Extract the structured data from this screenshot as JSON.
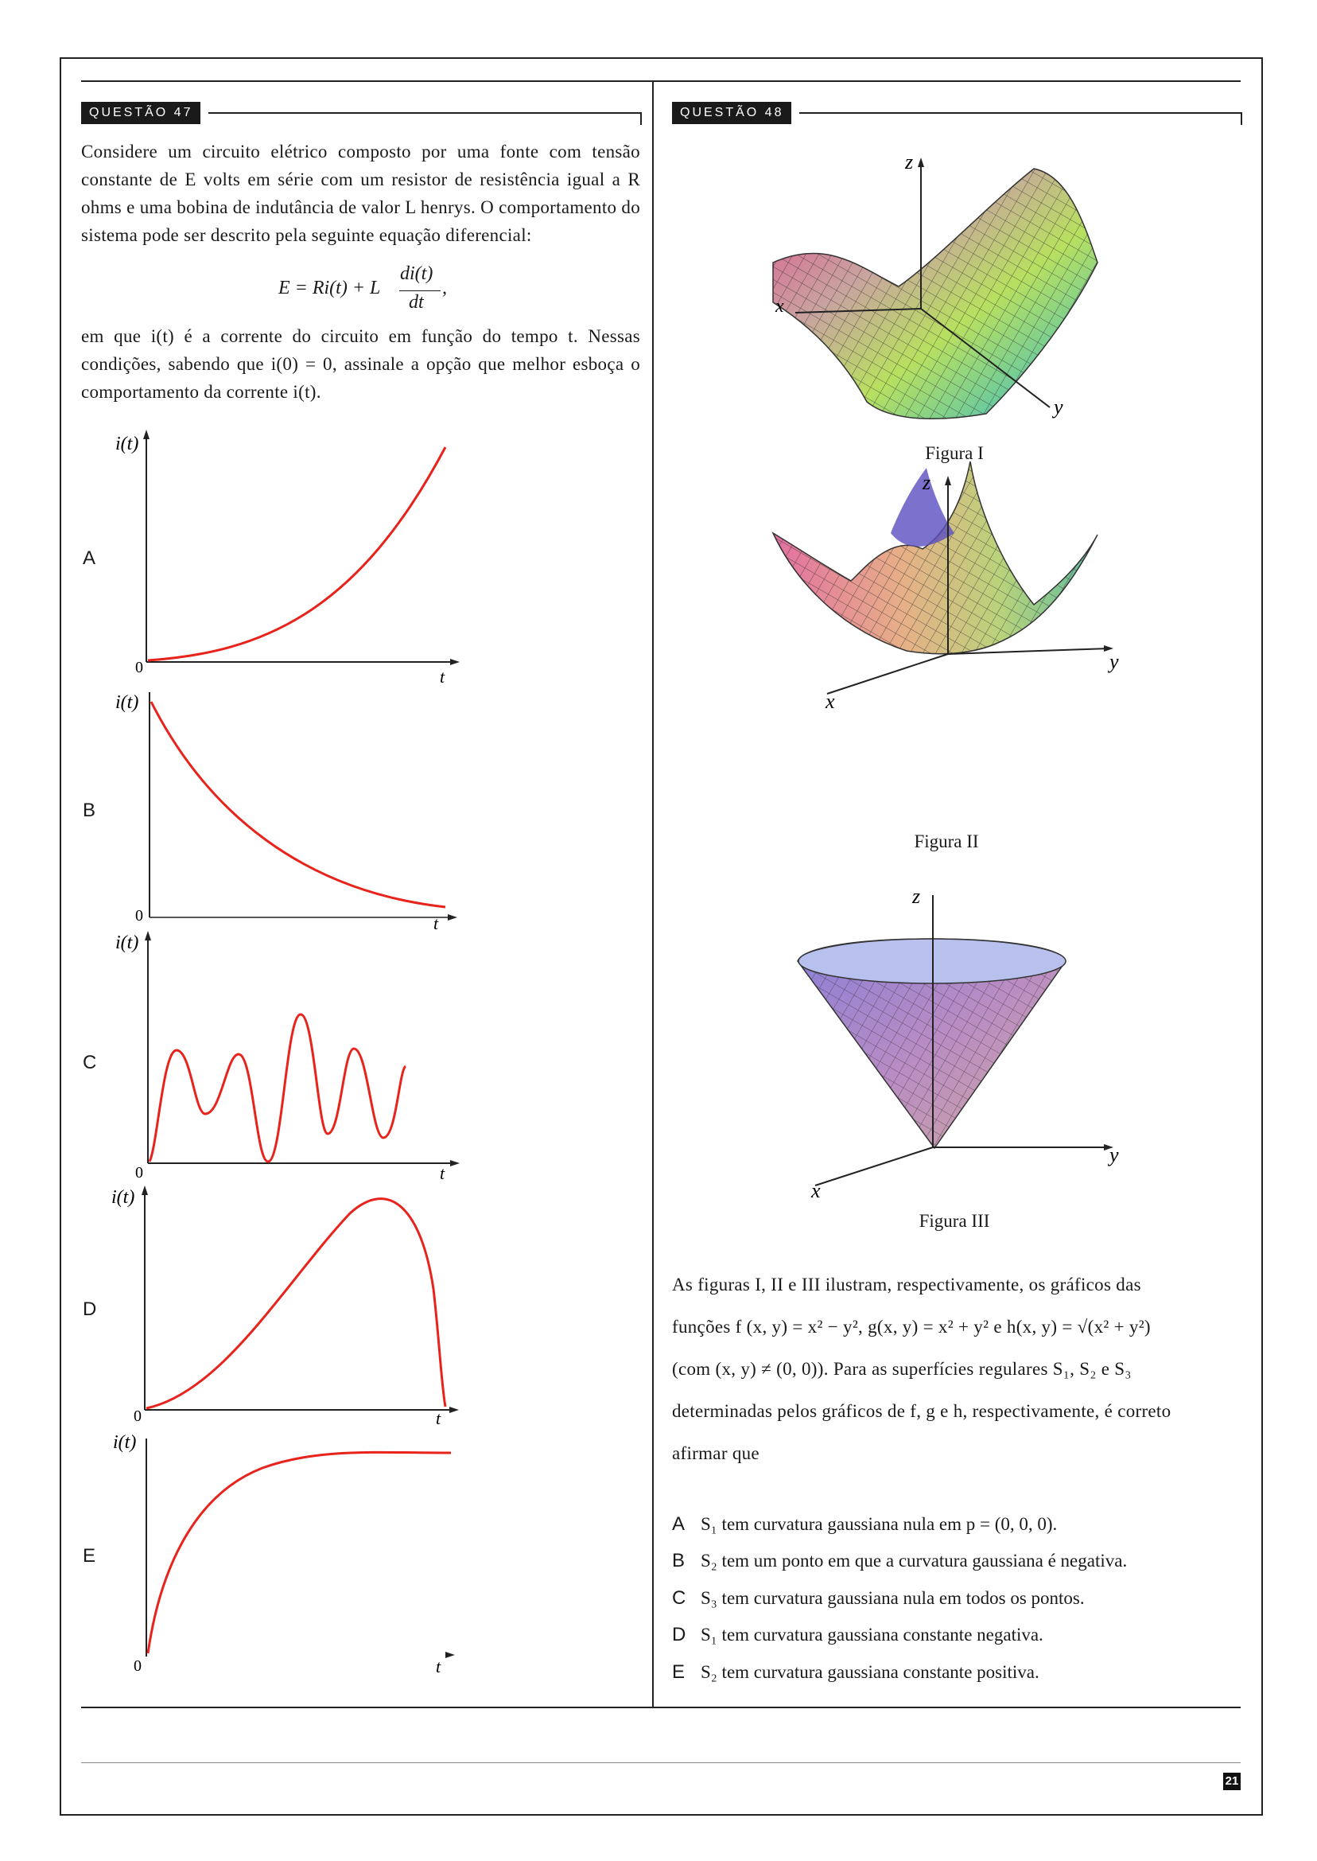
{
  "q47": {
    "label": "QUESTÃO 47",
    "intro": "Considere um circuito elétrico composto por uma fonte com tensão constante de E volts em série com um resistor de resistência igual a R ohms e uma bobina de indutância de valor L henrys. O comportamento do sistema pode ser descrito pela seguinte equação diferencial:",
    "equation_lhs": "E = Ri(t) + L",
    "equation_num": "di(t)",
    "equation_den": "dt",
    "equation_tail": ",",
    "after": "em que i(t) é a corrente do circuito em função do tempo t. Nessas condições, sabendo que i(0) = 0, assinale a opção que melhor esboça o comportamento da corrente i(t).",
    "options": [
      {
        "letter": "A",
        "ylabel": "i(t)",
        "xlabel": "t",
        "origin": "0",
        "shape": "exponential growth"
      },
      {
        "letter": "B",
        "ylabel": "i(t)",
        "xlabel": "t",
        "origin": "0",
        "shape": "exponential decay"
      },
      {
        "letter": "C",
        "ylabel": "i(t)",
        "xlabel": "t",
        "origin": "0",
        "shape": "oscillation"
      },
      {
        "letter": "D",
        "ylabel": "i(t)",
        "xlabel": "t",
        "origin": "0",
        "shape": "rise and fall"
      },
      {
        "letter": "E",
        "ylabel": "i(t)",
        "xlabel": "t",
        "origin": "0",
        "shape": "saturating growth"
      }
    ]
  },
  "q48": {
    "label": "QUESTÃO 48",
    "figures": [
      {
        "caption": "Figura I",
        "axes": [
          "z",
          "x",
          "y"
        ],
        "surface": "saddle"
      },
      {
        "caption": "Figura II",
        "axes": [
          "z",
          "x",
          "y"
        ],
        "surface": "paraboloid"
      },
      {
        "caption": "Figura III",
        "axes": [
          "z",
          "x",
          "y"
        ],
        "surface": "cone"
      }
    ],
    "text_line1": "As figuras I, II e III ilustram, respectivamente, os gráficos das",
    "text_line2": "funções f (x, y) = x² − y², g(x, y) = x² + y² e h(x, y) = √(x² + y²)",
    "text_line3": "(com (x, y) ≠ (0, 0)). Para as superfícies regulares S₁, S₂ e S₃",
    "text_line4": "determinadas pelos gráficos de f, g e h, respectivamente, é correto",
    "text_line5": "afirmar que",
    "options": [
      {
        "letter": "A",
        "text": "S₁ tem curvatura gaussiana nula em p = (0, 0, 0)."
      },
      {
        "letter": "B",
        "text": "S₂ tem um ponto em que a curvatura gaussiana é negativa."
      },
      {
        "letter": "C",
        "text": "S₃ tem curvatura gaussiana nula em todos os pontos."
      },
      {
        "letter": "D",
        "text": "S₁ tem curvatura gaussiana constante negativa."
      },
      {
        "letter": "E",
        "text": "S₂ tem curvatura gaussiana constante positiva."
      }
    ]
  },
  "page": {
    "number": "21"
  },
  "colors": {
    "curve": "#e8231b",
    "rule": "#222222"
  }
}
